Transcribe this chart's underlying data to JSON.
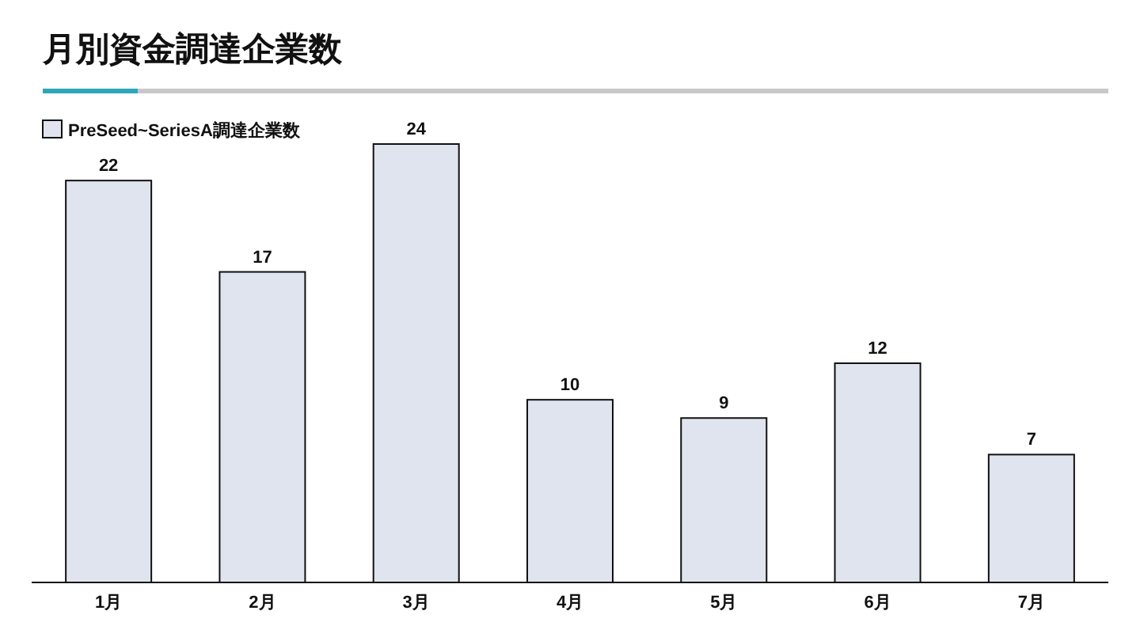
{
  "chart_data": {
    "type": "bar",
    "title": "月別資金調達企業数",
    "categories": [
      "1月",
      "2月",
      "3月",
      "4月",
      "5月",
      "6月",
      "7月"
    ],
    "series": [
      {
        "name": "PreSeed~SeriesA調達企業数",
        "color": "#dfe4ee",
        "values": [
          22,
          17,
          24,
          10,
          9,
          12,
          7
        ]
      }
    ],
    "data_labels": true,
    "legend": "top left"
  }
}
